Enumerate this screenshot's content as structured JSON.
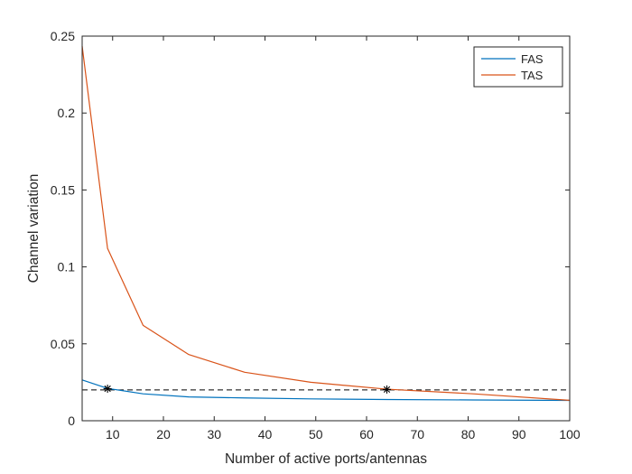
{
  "chart_data": {
    "type": "line",
    "title": "",
    "xlabel": "Number of active ports/antennas",
    "ylabel": "Channel variation",
    "xlim": [
      4,
      100
    ],
    "ylim": [
      0,
      0.25
    ],
    "xticks": [
      10,
      20,
      30,
      40,
      50,
      60,
      70,
      80,
      90,
      100
    ],
    "yticks": [
      0,
      0.05,
      0.1,
      0.15,
      0.2,
      0.25
    ],
    "ytick_labels": [
      "0",
      "0.05",
      "0.1",
      "0.15",
      "0.2",
      "0.25"
    ],
    "grid": false,
    "legend_position": "top-right",
    "series": [
      {
        "name": "FAS",
        "color": "#0072BD",
        "x": [
          4,
          9,
          16,
          25,
          36,
          49,
          64,
          81,
          100
        ],
        "y": [
          0.0265,
          0.021,
          0.0175,
          0.0155,
          0.0148,
          0.0142,
          0.0138,
          0.0135,
          0.0132
        ]
      },
      {
        "name": "TAS",
        "color": "#D95319",
        "x": [
          4,
          9,
          16,
          25,
          36,
          49,
          64,
          81,
          100
        ],
        "y": [
          0.2435,
          0.112,
          0.062,
          0.043,
          0.0315,
          0.025,
          0.0205,
          0.0175,
          0.0133
        ]
      }
    ],
    "reference_line": {
      "y": 0.02,
      "style": "dashed",
      "color": "#000000"
    },
    "markers": [
      {
        "x": 9,
        "y": 0.0208,
        "symbol": "asterisk"
      },
      {
        "x": 64,
        "y": 0.0203,
        "symbol": "asterisk"
      }
    ]
  }
}
